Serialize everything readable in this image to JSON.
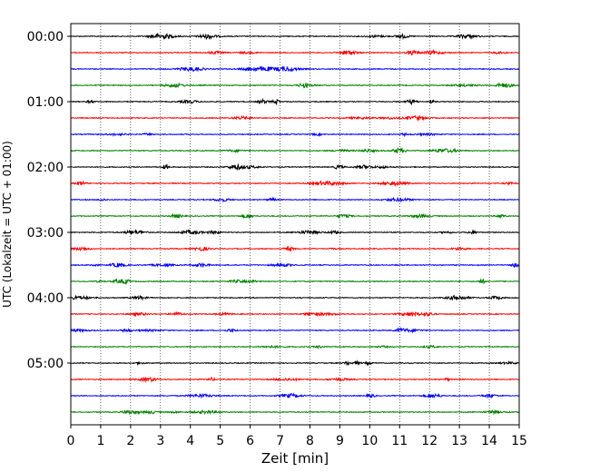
{
  "chart_data": {
    "type": "line",
    "title": "",
    "xlabel": "Zeit  [min]",
    "ylabel": "UTC (Lokalzeit = UTC + 01:00)",
    "xlim": [
      0,
      15
    ],
    "x_ticks": [
      "0",
      "1",
      "2",
      "3",
      "4",
      "5",
      "6",
      "7",
      "8",
      "9",
      "10",
      "11",
      "12",
      "13",
      "14",
      "15"
    ],
    "y_tick_labels": [
      "00:00",
      "01:00",
      "02:00",
      "03:00",
      "04:00",
      "05:00"
    ],
    "grid": "vertical dotted at each minute",
    "trace_interval_minutes": 15,
    "trace_colors": [
      "#000000",
      "#ff0000",
      "#0000ff",
      "#008000"
    ],
    "traces": [
      {
        "start": "00:00",
        "color": "#000000"
      },
      {
        "start": "00:15",
        "color": "#ff0000"
      },
      {
        "start": "00:30",
        "color": "#0000ff"
      },
      {
        "start": "00:45",
        "color": "#008000"
      },
      {
        "start": "01:00",
        "color": "#000000"
      },
      {
        "start": "01:15",
        "color": "#ff0000"
      },
      {
        "start": "01:30",
        "color": "#0000ff"
      },
      {
        "start": "01:45",
        "color": "#008000"
      },
      {
        "start": "02:00",
        "color": "#000000"
      },
      {
        "start": "02:15",
        "color": "#ff0000"
      },
      {
        "start": "02:30",
        "color": "#0000ff"
      },
      {
        "start": "02:45",
        "color": "#008000"
      },
      {
        "start": "03:00",
        "color": "#000000"
      },
      {
        "start": "03:15",
        "color": "#ff0000"
      },
      {
        "start": "03:30",
        "color": "#0000ff"
      },
      {
        "start": "03:45",
        "color": "#008000"
      },
      {
        "start": "04:00",
        "color": "#000000"
      },
      {
        "start": "04:15",
        "color": "#ff0000"
      },
      {
        "start": "04:30",
        "color": "#0000ff"
      },
      {
        "start": "04:45",
        "color": "#008000"
      },
      {
        "start": "05:00",
        "color": "#000000"
      },
      {
        "start": "05:15",
        "color": "#ff0000"
      },
      {
        "start": "05:30",
        "color": "#0000ff"
      },
      {
        "start": "05:45",
        "color": "#008000"
      }
    ]
  }
}
